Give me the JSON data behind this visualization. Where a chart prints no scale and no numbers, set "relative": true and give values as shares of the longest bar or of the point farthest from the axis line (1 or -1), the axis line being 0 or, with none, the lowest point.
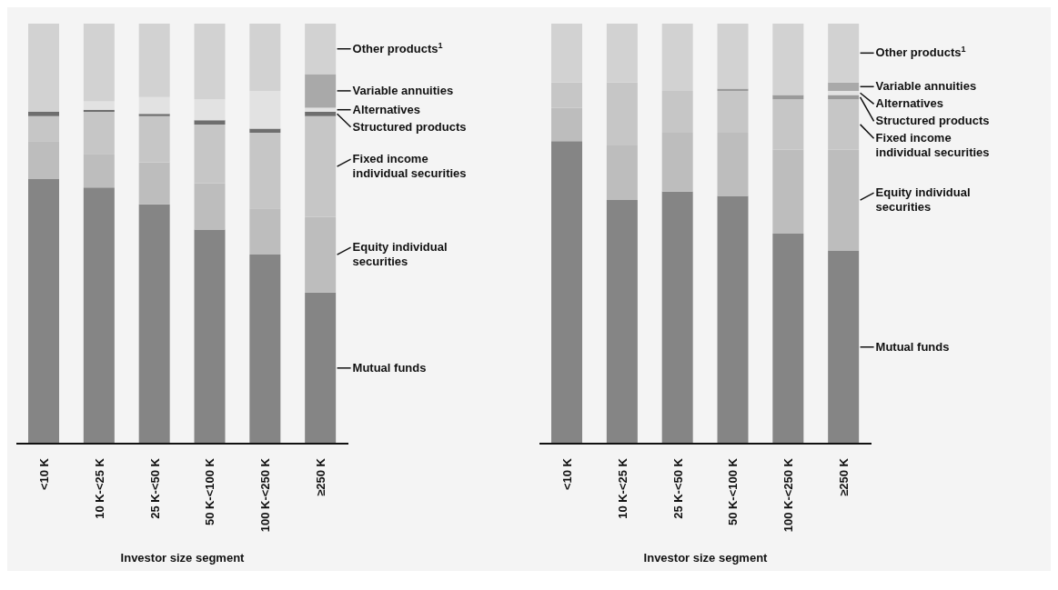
{
  "chart_data": [
    {
      "type": "bar",
      "stacked": true,
      "relative": true,
      "xlabel": "Investor size segment",
      "categories": [
        "<10 K",
        "10 K-<25 K",
        "25 K-<50 K",
        "50 K-<100 K",
        "100 K-<250 K",
        "≥250 K"
      ],
      "series": [
        {
          "name": "Mutual funds",
          "color": "#858585",
          "values": [
            0.63,
            0.61,
            0.57,
            0.51,
            0.45,
            0.36
          ]
        },
        {
          "name": "Equity individual securities",
          "color": "#bdbdbd",
          "values": [
            0.09,
            0.08,
            0.1,
            0.11,
            0.11,
            0.18
          ]
        },
        {
          "name": "Fixed income individual securities",
          "color": "#c6c6c6",
          "values": [
            0.06,
            0.1,
            0.11,
            0.14,
            0.18,
            0.24
          ]
        },
        {
          "name": "Structured products",
          "color": "#6e6e6e",
          "values": [
            0.01,
            0.005,
            0.005,
            0.01,
            0.01,
            0.01
          ]
        },
        {
          "name": "Alternatives",
          "color": "#e2e2e2",
          "values": [
            0.0,
            0.02,
            0.04,
            0.05,
            0.09,
            0.01
          ]
        },
        {
          "name": "Variable annuities",
          "color": "#a9a9a9",
          "values": [
            0.0,
            0.0,
            0.0,
            0.0,
            0.0,
            0.08
          ]
        },
        {
          "name": "Other products$^{1}$",
          "color": "#d2d2d2",
          "values": [
            0.21,
            0.185,
            0.175,
            0.18,
            0.16,
            0.12
          ]
        }
      ]
    },
    {
      "type": "bar",
      "stacked": true,
      "relative": true,
      "xlabel": "Investor size segment",
      "categories": [
        "<10 K",
        "10 K-<25 K",
        "25 K-<50 K",
        "50 K-<100 K",
        "100 K-<250 K",
        "≥250 K"
      ],
      "series": [
        {
          "name": "Mutual funds",
          "color": "#858585",
          "values": [
            0.72,
            0.58,
            0.6,
            0.59,
            0.5,
            0.46
          ]
        },
        {
          "name": "Equity individual securities",
          "color": "#bdbdbd",
          "values": [
            0.08,
            0.13,
            0.14,
            0.15,
            0.2,
            0.24
          ]
        },
        {
          "name": "Fixed income individual securities",
          "color": "#c6c6c6",
          "values": [
            0.06,
            0.15,
            0.1,
            0.1,
            0.12,
            0.12
          ]
        },
        {
          "name": "Structured products",
          "color": "#9a9a9a",
          "values": [
            0.0,
            0.0,
            0.0,
            0.005,
            0.01,
            0.01
          ]
        },
        {
          "name": "Alternatives",
          "color": "#e2e2e2",
          "values": [
            0.0,
            0.0,
            0.0,
            0.0,
            0.0,
            0.01
          ]
        },
        {
          "name": "Variable annuities",
          "color": "#a9a9a9",
          "values": [
            0.0,
            0.0,
            0.0,
            0.0,
            0.0,
            0.02
          ]
        },
        {
          "name": "Other products$^{1}$",
          "color": "#d2d2d2",
          "values": [
            0.14,
            0.14,
            0.16,
            0.155,
            0.17,
            0.14
          ]
        }
      ]
    }
  ]
}
